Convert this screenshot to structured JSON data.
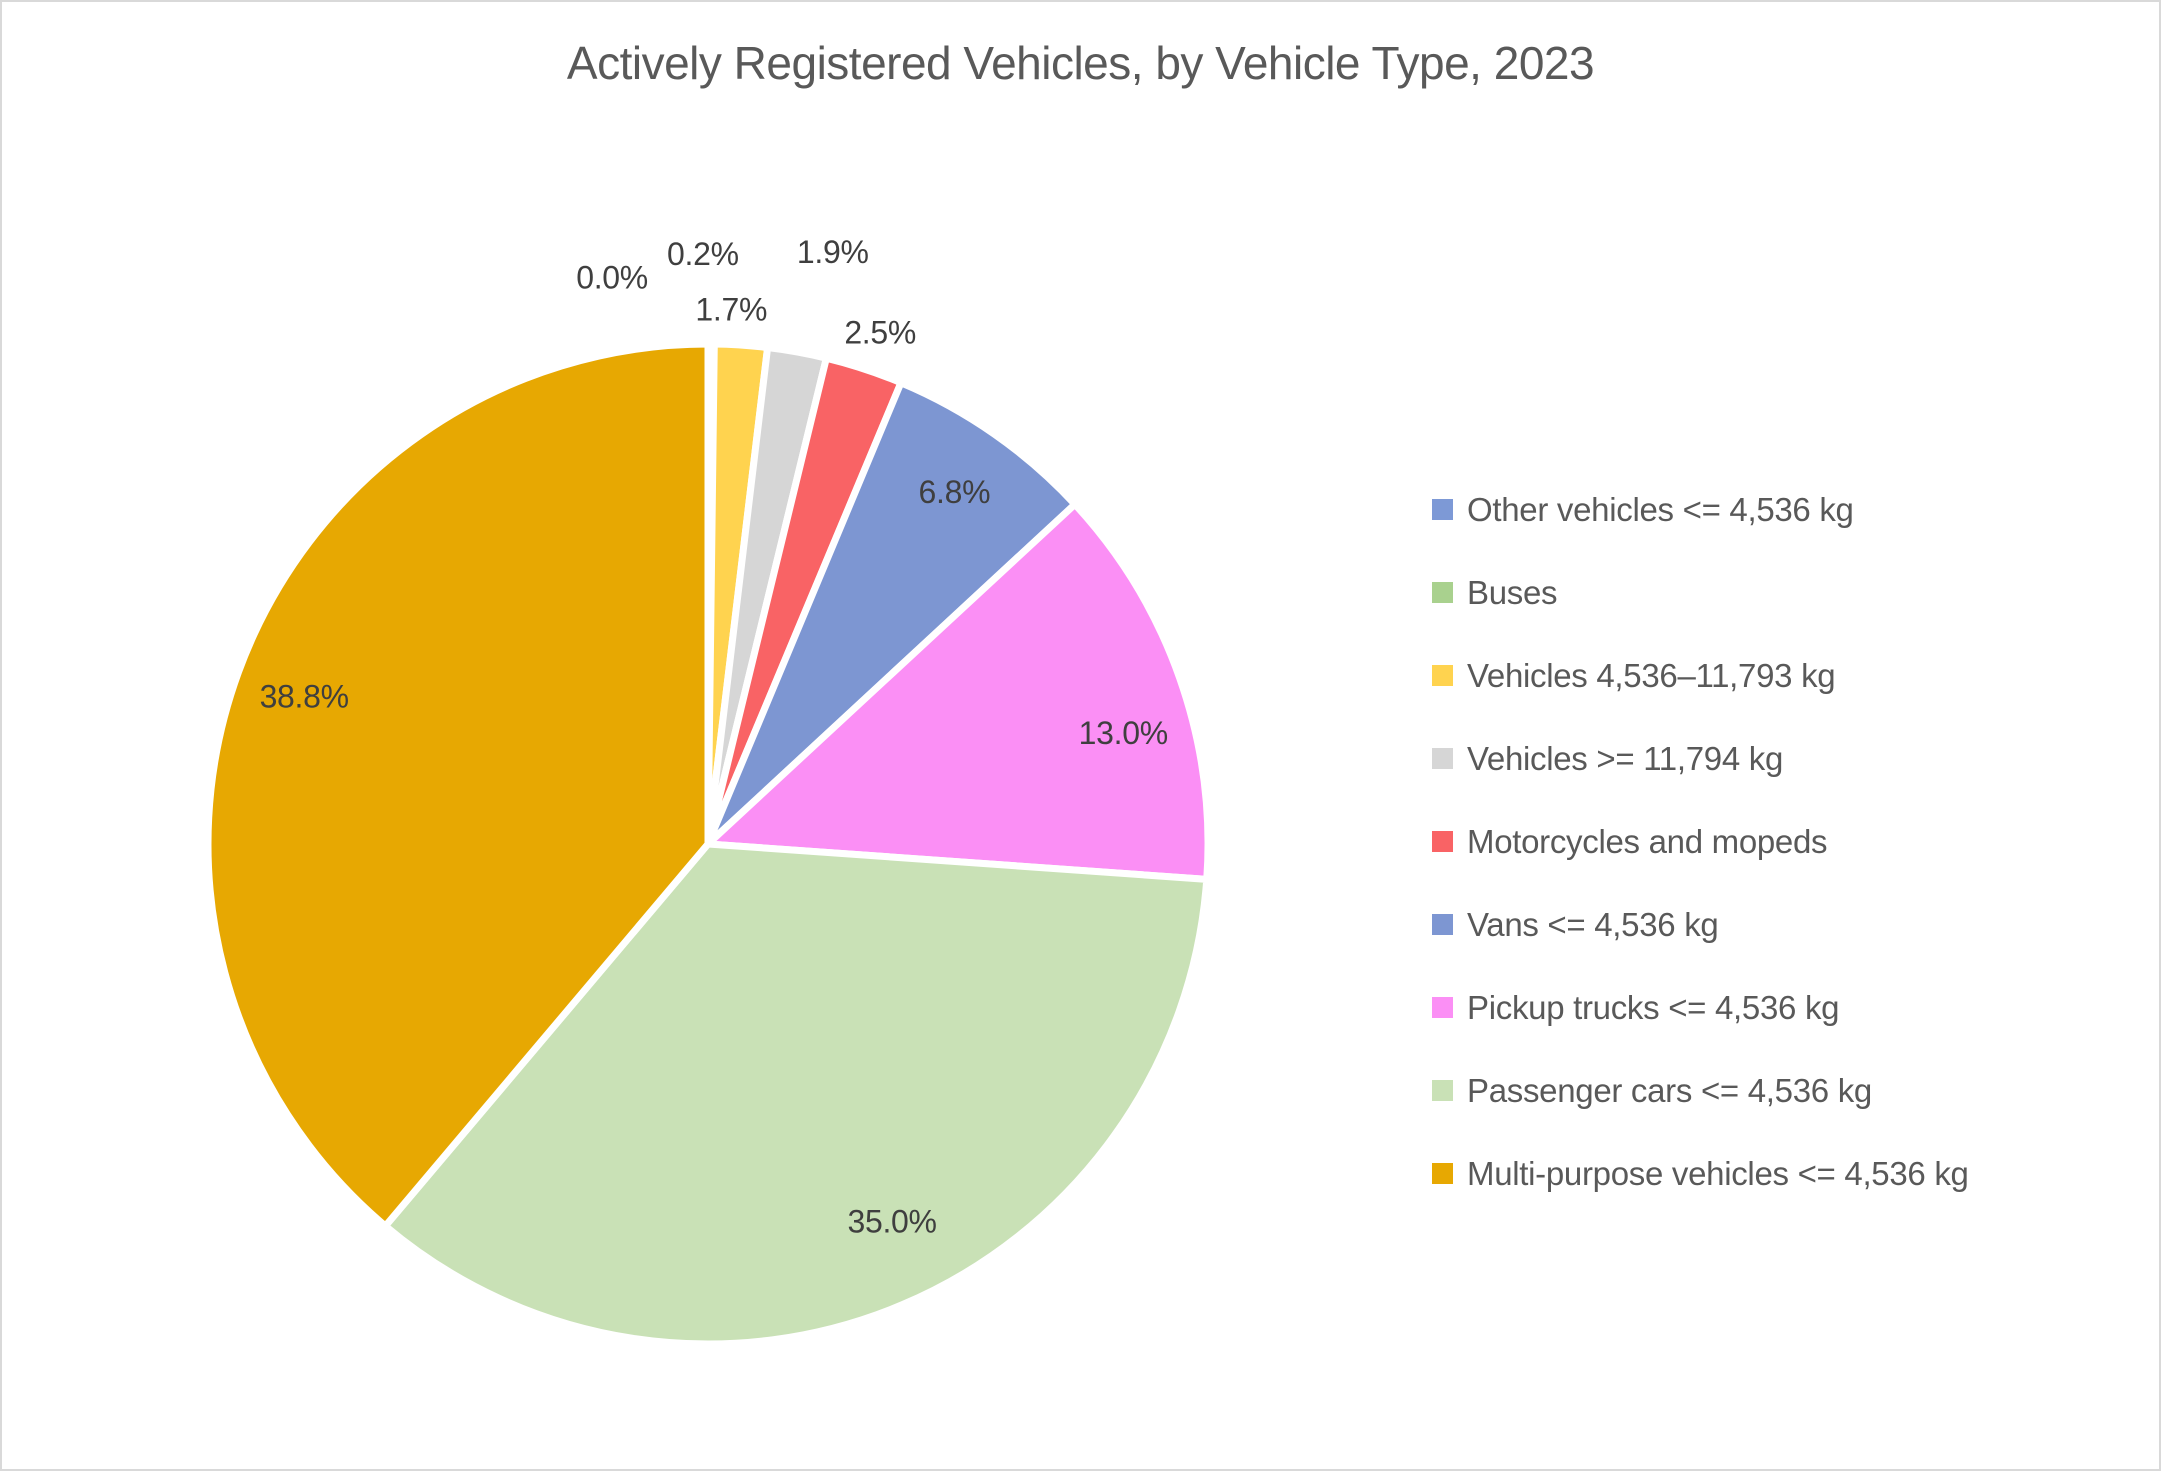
{
  "chart_data": {
    "type": "pie",
    "title": "Actively Registered Vehicles, by Vehicle Type, 2023",
    "unit": "%",
    "legend_position": "right",
    "slices": [
      {
        "label": "Other vehicles <= 4,536 kg",
        "value": 0.0,
        "percent_label": "0.0%",
        "color": "#7D99D6"
      },
      {
        "label": "Buses",
        "value": 0.2,
        "percent_label": "0.2%",
        "color": "#A9D18E"
      },
      {
        "label": "Vehicles 4,536–11,793 kg",
        "value": 1.7,
        "percent_label": "1.7%",
        "color": "#FFD34F"
      },
      {
        "label": "Vehicles >= 11,794 kg",
        "value": 1.9,
        "percent_label": "1.9%",
        "color": "#D6D6D6"
      },
      {
        "label": "Motorcycles and mopeds",
        "value": 2.5,
        "percent_label": "2.5%",
        "color": "#F96365"
      },
      {
        "label": "Vans <= 4,536 kg",
        "value": 6.8,
        "percent_label": "6.8%",
        "color": "#7D96D2"
      },
      {
        "label": "Pickup trucks <= 4,536 kg",
        "value": 13.0,
        "percent_label": "13.0%",
        "color": "#FB8FF5"
      },
      {
        "label": "Passenger cars <= 4,536 kg",
        "value": 35.0,
        "percent_label": "35.0%",
        "color": "#C9E1B6"
      },
      {
        "label": "Multi-purpose vehicles <= 4,536 kg",
        "value": 38.8,
        "percent_label": "38.8%",
        "color": "#E7A802"
      }
    ],
    "colors": {
      "title_text": "#595959",
      "label_text": "#3F3F3F",
      "legend_text": "#595959",
      "slice_border": "#FFFFFF",
      "frame_border": "#D9D9D9",
      "background": "#FFFFFF"
    }
  }
}
